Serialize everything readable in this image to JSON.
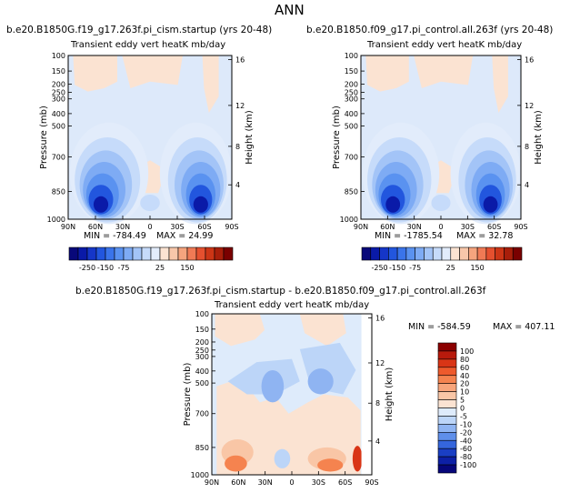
{
  "figure": {
    "title": "ANN",
    "colors": {
      "negative_dark": "#08087a",
      "zero": "#ffffff",
      "positive_dark": "#7a0000"
    }
  },
  "chart_data": [
    {
      "type": "heatmap",
      "panel": "top-left",
      "title": "b.e20.B1850G.f19_g17.263f.pi_cism.startup (yrs 20-48)",
      "subtitle": "Transient eddy vert heatK mb/day",
      "xlabel": "",
      "ylabel": "Pressure (mb)",
      "y2label": "Height (km)",
      "x_ticks": [
        "90N",
        "60N",
        "30N",
        "0",
        "30S",
        "60S",
        "90S"
      ],
      "y_ticks": [
        100,
        150,
        200,
        250,
        300,
        400,
        500,
        700,
        850,
        1000
      ],
      "y2_ticks": [
        16,
        12,
        8,
        4
      ],
      "ylim": [
        100,
        1000
      ],
      "stats": {
        "min_label": "MIN = -784.49",
        "max_label": "MAX =  24.99",
        "min": -784.49,
        "max": 24.99
      },
      "colorbar": {
        "orientation": "horizontal",
        "labels": [
          "-250",
          "-150",
          "-75",
          "25",
          "150"
        ],
        "levels": [
          -350,
          -300,
          -250,
          -200,
          -150,
          -100,
          -75,
          -50,
          -25,
          0,
          25,
          50,
          75,
          100,
          150,
          200,
          250,
          300,
          350
        ],
        "colors": [
          "#08087a",
          "#0a1aa8",
          "#1536c8",
          "#2256de",
          "#3a74ea",
          "#5a92f0",
          "#7eabf4",
          "#a3c4f7",
          "#c6dbfa",
          "#e2ecfb",
          "#fbe3d2",
          "#f8c7aa",
          "#f5a47e",
          "#f07a55",
          "#e5502f",
          "#cc3516",
          "#a81e0a",
          "#7a0000"
        ]
      }
    },
    {
      "type": "heatmap",
      "panel": "top-right",
      "title": "b.e20.B1850.f09_g17.pi_control.all.263f (yrs 20-48)",
      "subtitle": "Transient eddy vert heatK mb/day",
      "xlabel": "",
      "ylabel": "Pressure (mb)",
      "y2label": "Height (km)",
      "x_ticks": [
        "90N",
        "60N",
        "30N",
        "0",
        "30S",
        "60S",
        "90S"
      ],
      "y_ticks": [
        100,
        150,
        200,
        250,
        300,
        400,
        500,
        700,
        850,
        1000
      ],
      "y2_ticks": [
        16,
        12,
        8,
        4
      ],
      "ylim": [
        100,
        1000
      ],
      "stats": {
        "min_label": "MIN = -1785.54",
        "max_label": "MAX =  32.78",
        "min": -1785.54,
        "max": 32.78
      },
      "colorbar": {
        "orientation": "horizontal",
        "labels": [
          "-250",
          "-150",
          "-75",
          "25",
          "150"
        ],
        "levels": [
          -350,
          -300,
          -250,
          -200,
          -150,
          -100,
          -75,
          -50,
          -25,
          0,
          25,
          50,
          75,
          100,
          150,
          200,
          250,
          300,
          350
        ],
        "colors": [
          "#08087a",
          "#0a1aa8",
          "#1536c8",
          "#2256de",
          "#3a74ea",
          "#5a92f0",
          "#7eabf4",
          "#a3c4f7",
          "#c6dbfa",
          "#e2ecfb",
          "#fbe3d2",
          "#f8c7aa",
          "#f5a47e",
          "#f07a55",
          "#e5502f",
          "#cc3516",
          "#a81e0a",
          "#7a0000"
        ]
      }
    },
    {
      "type": "heatmap",
      "panel": "bottom",
      "title": "b.e20.B1850G.f19_g17.263f.pi_cism.startup - b.e20.B1850.f09_g17.pi_control.all.263f",
      "subtitle": "Transient eddy vert heatK mb/day",
      "xlabel": "",
      "ylabel": "Pressure (mb)",
      "y2label": "Height (km)",
      "x_ticks": [
        "90N",
        "60N",
        "30N",
        "0",
        "30S",
        "60S",
        "90S"
      ],
      "y_ticks": [
        100,
        150,
        200,
        250,
        300,
        400,
        500,
        700,
        850,
        1000
      ],
      "y2_ticks": [
        16,
        12,
        8,
        4
      ],
      "ylim": [
        100,
        1000
      ],
      "stats": {
        "min_label": "MIN = -584.59",
        "max_label": "MAX = 407.11",
        "min": -584.59,
        "max": 407.11
      },
      "colorbar": {
        "orientation": "vertical",
        "labels": [
          "100",
          "80",
          "60",
          "40",
          "20",
          "10",
          "5",
          "0",
          "-5",
          "-10",
          "-20",
          "-40",
          "-60",
          "-80",
          "-100"
        ],
        "colors": [
          "#8b0000",
          "#b81a0c",
          "#d93516",
          "#ee5a2c",
          "#f5834f",
          "#f8a57b",
          "#f9c6a6",
          "#fbe3d2",
          "#deebfb",
          "#bcd5f8",
          "#8fb4f2",
          "#5f8fea",
          "#3566dc",
          "#1a3fc4",
          "#0d20a6",
          "#06067a"
        ]
      }
    }
  ]
}
